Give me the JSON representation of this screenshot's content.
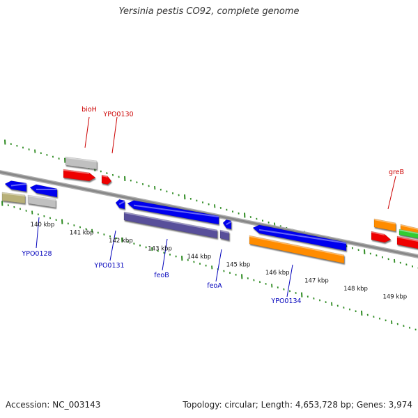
{
  "title": "Yersinia pestis CO92, complete genome",
  "footer": {
    "accession": "Accession: NC_003143",
    "summary": "Topology: circular; Length: 4,653,728 bp; Genes: 3,974"
  },
  "colors": {
    "backbone": "#888888",
    "tick": "#2e8b22",
    "label_top": "#cc0000",
    "label_bottom": "#0000bb"
  },
  "kbp_labels": [
    "140 kbp",
    "141 kbp",
    "142 kbp",
    "143 kbp",
    "144 kbp",
    "145 kbp",
    "146 kbp",
    "147 kbp",
    "148 kbp",
    "149 kbp"
  ],
  "gene_labels": {
    "top": [
      "bioH",
      "YPO0130",
      "greB"
    ],
    "bottom": [
      "YPO0128",
      "YPO0131",
      "feoB",
      "feoA",
      "YPO0134"
    ]
  },
  "features": [
    {
      "name": "top-gray-feature",
      "color": "#c0c0c0",
      "strand": "plus"
    },
    {
      "name": "bioH-arrow",
      "color": "#ee0000",
      "strand": "plus"
    },
    {
      "name": "YPO0130-arrow",
      "color": "#ee0000",
      "strand": "plus"
    },
    {
      "name": "YPO0128-arrow",
      "color": "#0000ee",
      "strand": "minus"
    },
    {
      "name": "neighbor-arrow",
      "color": "#0000ee",
      "strand": "minus"
    },
    {
      "name": "olive-feature",
      "color": "#b8b078",
      "strand": "minus"
    },
    {
      "name": "gray-feature",
      "color": "#c0c0c0",
      "strand": "minus"
    },
    {
      "name": "YPO0131-arrow",
      "color": "#0000ee",
      "strand": "minus"
    },
    {
      "name": "feoB-arrow",
      "color": "#0000ee",
      "strand": "minus"
    },
    {
      "name": "feoB-feature",
      "color": "#58509a",
      "strand": "minus"
    },
    {
      "name": "feoA-arrow",
      "color": "#0000ee",
      "strand": "minus"
    },
    {
      "name": "feoA-feature",
      "color": "#58509a",
      "strand": "minus"
    },
    {
      "name": "YPO0134-arrow",
      "color": "#0000ee",
      "strand": "minus"
    },
    {
      "name": "YPO0134-feature",
      "color": "#ff8c00",
      "strand": "minus"
    },
    {
      "name": "greB-feature",
      "color": "#ff8c00",
      "strand": "plus"
    },
    {
      "name": "greB-arrow",
      "color": "#ee0000",
      "strand": "plus"
    },
    {
      "name": "right-orange-feature",
      "color": "#ff8c00",
      "strand": "plus"
    },
    {
      "name": "right-green-feature",
      "color": "#33cc33",
      "strand": "plus"
    },
    {
      "name": "right-red-feature",
      "color": "#ee0000",
      "strand": "plus"
    }
  ]
}
